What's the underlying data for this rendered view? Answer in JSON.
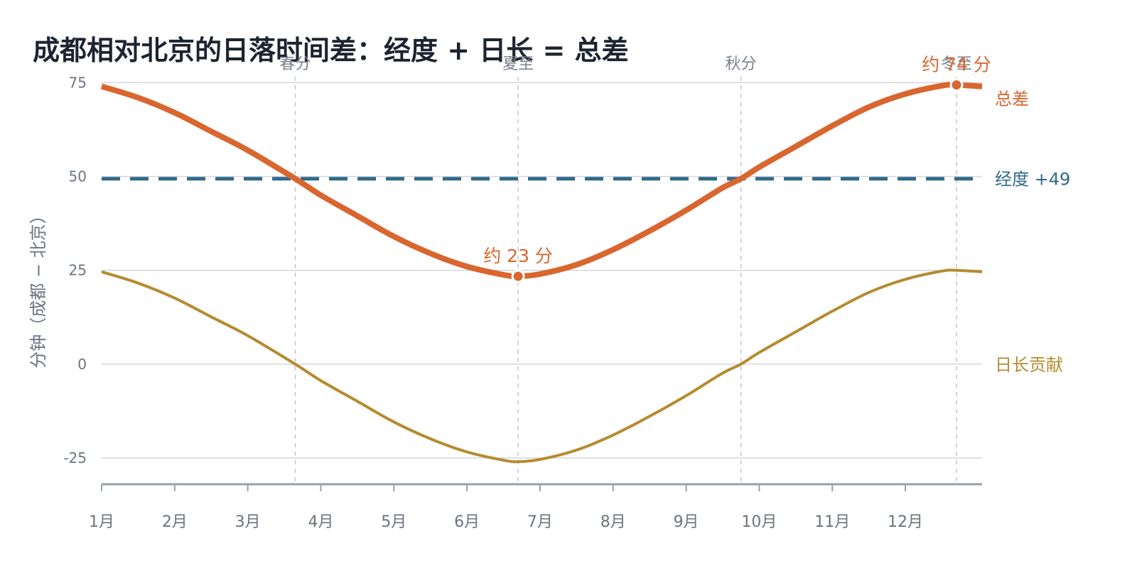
{
  "chart_data": {
    "type": "line",
    "title": "成都相对北京的日落时间差：经度 + 日长 = 总差",
    "ylabel": "分钟（成都 − 北京）",
    "ylim": [
      -32,
      80
    ],
    "yticks": [
      75,
      50,
      25,
      0,
      -25
    ],
    "xlim": [
      1,
      13.05
    ],
    "month_ticks": [
      "1月",
      "2月",
      "3月",
      "4月",
      "5月",
      "6月",
      "7月",
      "8月",
      "9月",
      "10月",
      "11月",
      "12月"
    ],
    "vertical_markers": [
      {
        "label": "春分",
        "x": 3.65
      },
      {
        "label": "夏至",
        "x": 6.7
      },
      {
        "label": "秋分",
        "x": 9.75
      },
      {
        "label": "冬至",
        "x": 12.7
      }
    ],
    "series": [
      {
        "name": "总差",
        "color": "#d9662f",
        "style": "solid",
        "x": [
          1.0,
          1.5,
          2.0,
          2.5,
          3.0,
          3.65,
          4.0,
          4.5,
          5.0,
          5.5,
          6.0,
          6.5,
          6.7,
          7.0,
          7.5,
          8.0,
          8.5,
          9.0,
          9.5,
          9.75,
          10.0,
          10.5,
          11.0,
          11.5,
          12.0,
          12.5,
          12.7,
          13.05
        ],
        "values": [
          74,
          71,
          67,
          62,
          57,
          49.4,
          45,
          39.5,
          34,
          29.5,
          26,
          23.8,
          23.4,
          24,
          26.5,
          30.5,
          35.5,
          41,
          47,
          49.4,
          52.5,
          58,
          63.5,
          68.5,
          72,
          74.2,
          74.4,
          74
        ]
      },
      {
        "name": "经度 +49",
        "color": "#2f6a8c",
        "style": "dashed",
        "x": [
          1.0,
          13.05
        ],
        "values": [
          49.4,
          49.4
        ]
      },
      {
        "name": "日长贡献",
        "color": "#b58b2f",
        "style": "solid",
        "x": [
          1.0,
          1.5,
          2.0,
          2.5,
          3.0,
          3.65,
          4.0,
          4.5,
          5.0,
          5.5,
          6.0,
          6.5,
          6.7,
          7.0,
          7.5,
          8.0,
          8.5,
          9.0,
          9.5,
          9.75,
          10.0,
          10.5,
          11.0,
          11.5,
          12.0,
          12.5,
          12.7,
          13.05
        ],
        "values": [
          24.6,
          21.6,
          17.6,
          12.6,
          7.6,
          0,
          -4.4,
          -9.9,
          -15.4,
          -19.9,
          -23.4,
          -25.6,
          -26,
          -25.4,
          -22.9,
          -18.9,
          -13.9,
          -8.4,
          -2.4,
          0,
          3.1,
          8.6,
          14.1,
          19.1,
          22.6,
          24.8,
          25,
          24.6
        ]
      }
    ],
    "annotations": [
      {
        "text": "约 23 分",
        "x": 6.7,
        "y": 23.4,
        "color": "#d9662f"
      },
      {
        "text": "约 74 分",
        "x": 12.7,
        "y": 74.4,
        "color": "#d9662f"
      }
    ],
    "grid": true
  }
}
